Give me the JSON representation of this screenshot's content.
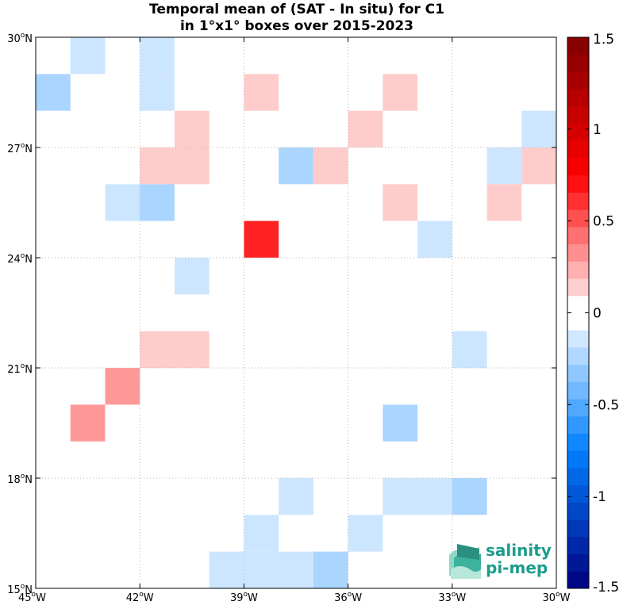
{
  "chart_data": {
    "type": "heatmap",
    "title": [
      "Temporal mean of (SAT - In situ) for C1",
      "in 1°x1° boxes over 2015-2023"
    ],
    "x_range": [
      -45,
      -30
    ],
    "y_range": [
      15,
      30
    ],
    "x_ticks": [
      {
        "value": -45,
        "deg": "45",
        "dir": "W"
      },
      {
        "value": -42,
        "deg": "42",
        "dir": "W"
      },
      {
        "value": -39,
        "deg": "39",
        "dir": "W"
      },
      {
        "value": -36,
        "deg": "36",
        "dir": "W"
      },
      {
        "value": -33,
        "deg": "33",
        "dir": "W"
      },
      {
        "value": -30,
        "deg": "30",
        "dir": "W"
      }
    ],
    "y_ticks": [
      {
        "value": 15,
        "deg": "15",
        "dir": "N"
      },
      {
        "value": 18,
        "deg": "18",
        "dir": "N"
      },
      {
        "value": 21,
        "deg": "21",
        "dir": "N"
      },
      {
        "value": 24,
        "deg": "24",
        "dir": "N"
      },
      {
        "value": 27,
        "deg": "27",
        "dir": "N"
      },
      {
        "value": 30,
        "deg": "30",
        "dir": "N"
      }
    ],
    "grid": true,
    "colorbar": {
      "range": [
        -1.5,
        1.5
      ],
      "ticks": [
        {
          "value": 1.5,
          "label": "1.5"
        },
        {
          "value": 1.0,
          "label": "1"
        },
        {
          "value": 0.5,
          "label": "0.5"
        },
        {
          "value": 0.0,
          "label": "0"
        },
        {
          "value": -0.5,
          "label": "-0.5"
        },
        {
          "value": -1.0,
          "label": "-1"
        },
        {
          "value": -1.5,
          "label": "-1.5"
        }
      ],
      "steps": 32,
      "zero_band": 0.1,
      "colormap": "blue-white-red"
    },
    "cells": [
      {
        "lon": -43.5,
        "lat": 29.5,
        "value": -0.15
      },
      {
        "lon": -41.5,
        "lat": 29.5,
        "value": -0.15
      },
      {
        "lon": -44.5,
        "lat": 28.5,
        "value": -0.25
      },
      {
        "lon": -41.5,
        "lat": 28.5,
        "value": -0.15
      },
      {
        "lon": -38.5,
        "lat": 28.5,
        "value": 0.15
      },
      {
        "lon": -34.5,
        "lat": 28.5,
        "value": 0.15
      },
      {
        "lon": -40.5,
        "lat": 27.5,
        "value": 0.15
      },
      {
        "lon": -35.5,
        "lat": 27.5,
        "value": 0.15
      },
      {
        "lon": -30.5,
        "lat": 27.5,
        "value": -0.15
      },
      {
        "lon": -41.5,
        "lat": 26.5,
        "value": 0.15
      },
      {
        "lon": -40.5,
        "lat": 26.5,
        "value": 0.15
      },
      {
        "lon": -37.5,
        "lat": 26.5,
        "value": -0.25
      },
      {
        "lon": -36.5,
        "lat": 26.5,
        "value": 0.15
      },
      {
        "lon": -31.5,
        "lat": 26.5,
        "value": -0.15
      },
      {
        "lon": -30.5,
        "lat": 26.5,
        "value": 0.15
      },
      {
        "lon": -42.5,
        "lat": 25.5,
        "value": -0.15
      },
      {
        "lon": -41.5,
        "lat": 25.5,
        "value": -0.25
      },
      {
        "lon": -34.5,
        "lat": 25.5,
        "value": 0.15
      },
      {
        "lon": -31.5,
        "lat": 25.5,
        "value": 0.15
      },
      {
        "lon": -38.5,
        "lat": 24.5,
        "value": 0.65
      },
      {
        "lon": -33.5,
        "lat": 24.5,
        "value": -0.15
      },
      {
        "lon": -40.5,
        "lat": 23.5,
        "value": -0.15
      },
      {
        "lon": -41.5,
        "lat": 21.5,
        "value": 0.15
      },
      {
        "lon": -40.5,
        "lat": 21.5,
        "value": 0.15
      },
      {
        "lon": -32.5,
        "lat": 21.5,
        "value": -0.15
      },
      {
        "lon": -42.5,
        "lat": 20.5,
        "value": 0.3
      },
      {
        "lon": -43.5,
        "lat": 19.5,
        "value": 0.3
      },
      {
        "lon": -34.5,
        "lat": 19.5,
        "value": -0.25
      },
      {
        "lon": -37.5,
        "lat": 17.5,
        "value": -0.15
      },
      {
        "lon": -34.5,
        "lat": 17.5,
        "value": -0.15
      },
      {
        "lon": -33.5,
        "lat": 17.5,
        "value": -0.15
      },
      {
        "lon": -32.5,
        "lat": 17.5,
        "value": -0.25
      },
      {
        "lon": -38.5,
        "lat": 16.5,
        "value": -0.15
      },
      {
        "lon": -35.5,
        "lat": 16.5,
        "value": -0.15
      },
      {
        "lon": -39.5,
        "lat": 15.5,
        "value": -0.15
      },
      {
        "lon": -38.5,
        "lat": 15.5,
        "value": -0.15
      },
      {
        "lon": -37.5,
        "lat": 15.5,
        "value": -0.15
      },
      {
        "lon": -36.5,
        "lat": 15.5,
        "value": -0.25
      }
    ]
  },
  "logo": {
    "line1": "salinity",
    "line2": "pi-mep"
  }
}
